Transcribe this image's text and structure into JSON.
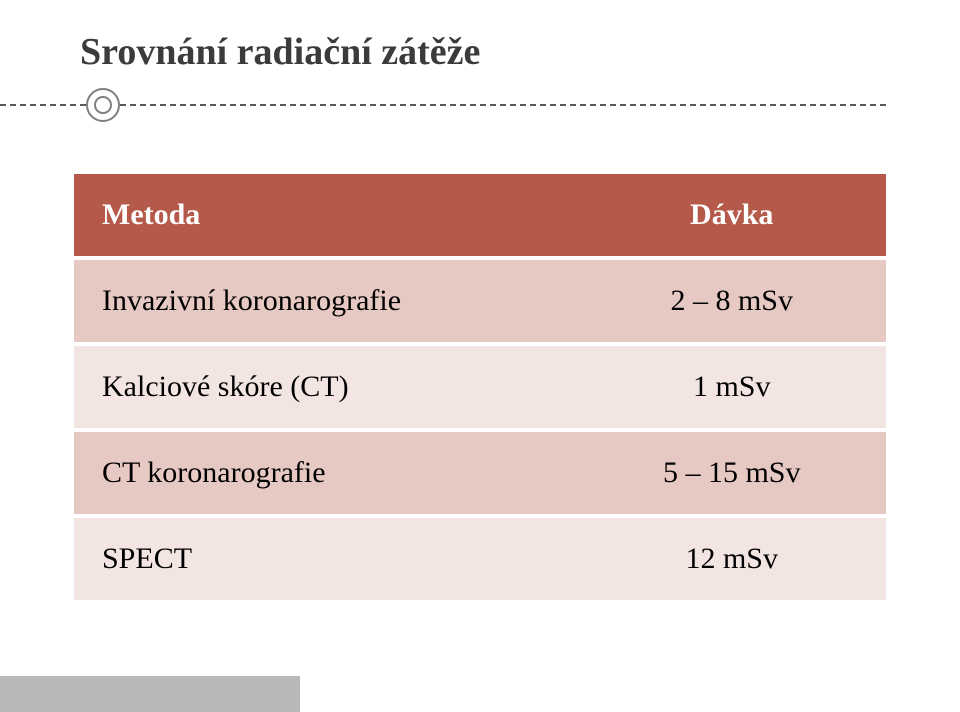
{
  "title": "Srovnání radiační zátěže",
  "table": {
    "header_bg": "#b55a4b",
    "row_odd_bg": "#e6c9c2",
    "row_even_bg": "#f3e5e2",
    "text_color": "#000000",
    "columns": [
      "Metoda",
      "Dávka"
    ],
    "rows": [
      [
        "Invazivní koronarografie",
        "2 – 8 mSv"
      ],
      [
        "Kalciové skóre (CT)",
        "1 mSv"
      ],
      [
        "CT koronarografie",
        "5 – 15 mSv"
      ],
      [
        "SPECT",
        "12 mSv"
      ]
    ]
  },
  "footer_bar_width": 300
}
